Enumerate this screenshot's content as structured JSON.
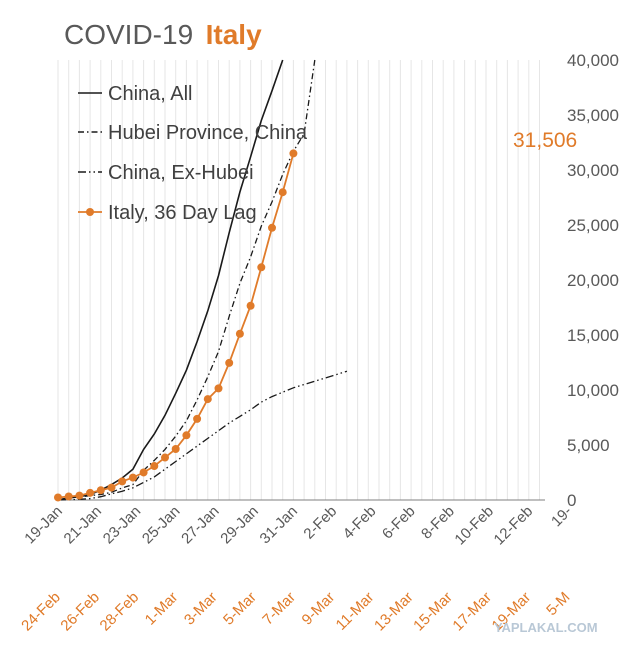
{
  "title": {
    "main": "COVID-19",
    "accent": "Italy"
  },
  "watermark": "YAPLAKAL.COM",
  "colors": {
    "china": "#1a1a1a",
    "italy": "#e07b2a",
    "text": "#595959",
    "grid": "#e6e6e6"
  },
  "chart_data": {
    "type": "line",
    "ylim": [
      0,
      40000
    ],
    "yticks": [
      "0",
      "5,000",
      "10,000",
      "15,000",
      "20,000",
      "25,000",
      "30,000",
      "35,000",
      "40,000"
    ],
    "x_labels_china": [
      "19-Jan",
      "21-Jan",
      "23-Jan",
      "25-Jan",
      "27-Jan",
      "29-Jan",
      "31-Jan",
      "2-Feb",
      "4-Feb",
      "6-Feb",
      "8-Feb",
      "10-Feb",
      "12-Feb",
      "19-"
    ],
    "x_labels_italy": [
      "24-Feb",
      "26-Feb",
      "28-Feb",
      "1-Mar",
      "3-Mar",
      "5-Mar",
      "7-Mar",
      "9-Mar",
      "11-Mar",
      "13-Mar",
      "15-Mar",
      "17-Mar",
      "19-Mar",
      "5-M"
    ],
    "legend": [
      "China, All",
      "Hubei Province, China",
      "China, Ex-Hubei",
      "Italy, 36 Day Lag"
    ],
    "callout": "31,506",
    "series": [
      {
        "name": "China, All",
        "style": "solid",
        "values": [
          0,
          200,
          300,
          500,
          900,
          1400,
          2000,
          2800,
          4600,
          6000,
          7700,
          9700,
          11800,
          14400,
          17200,
          20400,
          24300,
          28000,
          31200,
          34500,
          37200,
          40000
        ]
      },
      {
        "name": "Hubei Province, China",
        "style": "dashdot",
        "values": [
          0,
          200,
          270,
          400,
          500,
          700,
          1100,
          1400,
          2700,
          3600,
          4600,
          5800,
          7200,
          9100,
          11200,
          13500,
          16700,
          19700,
          22100,
          24900,
          27100,
          29600,
          31700,
          33300,
          40000
        ]
      },
      {
        "name": "China, Ex-Hubei",
        "style": "dashdotdot",
        "values": [
          0,
          30,
          60,
          130,
          300,
          550,
          800,
          1100,
          1600,
          2100,
          2800,
          3500,
          4200,
          4900,
          5600,
          6300,
          7000,
          7600,
          8200,
          8900,
          9400,
          9800,
          10200,
          10500,
          10800,
          11100,
          11400,
          11700
        ]
      },
      {
        "name": "Italy, 36 Day Lag",
        "style": "markers",
        "values": [
          229,
          322,
          400,
          650,
          888,
          1128,
          1694,
          2036,
          2502,
          3089,
          3858,
          4636,
          5883,
          7375,
          9172,
          10149,
          12462,
          15113,
          17660,
          21157,
          24747,
          27980,
          31506
        ]
      }
    ]
  }
}
